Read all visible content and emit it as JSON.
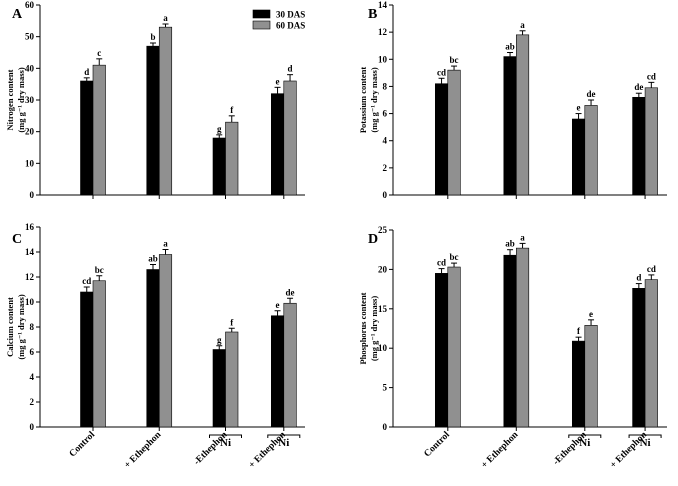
{
  "chart_data": [
    {
      "panel": "A",
      "type": "bar",
      "ylabel": "Nitrogen content",
      "yunit": "(mg g⁻¹ dry mass)",
      "ylim": [
        0,
        60
      ],
      "yticks": [
        0,
        10,
        20,
        30,
        40,
        50,
        60
      ],
      "categories": [
        "Control",
        "+ Ethephon",
        "-Ethephon",
        "+ Ethephon"
      ],
      "series": [
        {
          "name": "30 DAS",
          "color": "#000000",
          "values": [
            36,
            47,
            18,
            32
          ],
          "errors": [
            1,
            1,
            1,
            2
          ],
          "letters": [
            "d",
            "b",
            "g",
            "e"
          ]
        },
        {
          "name": "60 DAS",
          "color": "#909090",
          "values": [
            41,
            53,
            23,
            36
          ],
          "errors": [
            2,
            1,
            2,
            2
          ],
          "letters": [
            "c",
            "a",
            "f",
            "d"
          ]
        }
      ]
    },
    {
      "panel": "B",
      "type": "bar",
      "ylabel": "Potassium content",
      "yunit": "(mg g⁻¹ dry mass)",
      "ylim": [
        0,
        14
      ],
      "yticks": [
        0,
        2,
        4,
        6,
        8,
        10,
        12,
        14
      ],
      "categories": [
        "Control",
        "+ Ethephon",
        "-Ethephon",
        "+ Ethephon"
      ],
      "series": [
        {
          "name": "30 DAS",
          "color": "#000000",
          "values": [
            8.2,
            10.2,
            5.6,
            7.2
          ],
          "errors": [
            0.4,
            0.3,
            0.4,
            0.3
          ],
          "letters": [
            "cd",
            "ab",
            "e",
            "de"
          ]
        },
        {
          "name": "60 DAS",
          "color": "#909090",
          "values": [
            9.2,
            11.8,
            6.6,
            7.9
          ],
          "errors": [
            0.3,
            0.3,
            0.4,
            0.4
          ],
          "letters": [
            "bc",
            "a",
            "de",
            "cd"
          ]
        }
      ]
    },
    {
      "panel": "C",
      "type": "bar",
      "ylabel": "Calcium content",
      "yunit": "(mg g⁻¹ dry mass)",
      "ylim": [
        0,
        16
      ],
      "yticks": [
        0,
        2,
        4,
        6,
        8,
        10,
        12,
        14,
        16
      ],
      "categories": [
        "Control",
        "+ Ethephon",
        "-Ethephon",
        "+ Ethephon"
      ],
      "series": [
        {
          "name": "30 DAS",
          "color": "#000000",
          "values": [
            10.8,
            12.6,
            6.2,
            8.9
          ],
          "errors": [
            0.4,
            0.4,
            0.3,
            0.4
          ],
          "letters": [
            "cd",
            "ab",
            "g",
            "e"
          ]
        },
        {
          "name": "60 DAS",
          "color": "#909090",
          "values": [
            11.7,
            13.8,
            7.6,
            9.9
          ],
          "errors": [
            0.4,
            0.4,
            0.3,
            0.4
          ],
          "letters": [
            "bc",
            "a",
            "f",
            "de"
          ]
        }
      ]
    },
    {
      "panel": "D",
      "type": "bar",
      "ylabel": "Phosphorus content",
      "yunit": "(mg g⁻¹ dry mass)",
      "ylim": [
        0,
        25
      ],
      "yticks": [
        0,
        5,
        10,
        15,
        20,
        25
      ],
      "categories": [
        "Control",
        "+ Ethephon",
        "-Ethephon",
        "+ Ethephon"
      ],
      "series": [
        {
          "name": "30 DAS",
          "color": "#000000",
          "values": [
            19.5,
            21.8,
            10.9,
            17.6
          ],
          "errors": [
            0.6,
            0.7,
            0.5,
            0.6
          ],
          "letters": [
            "cd",
            "ab",
            "f",
            "d"
          ]
        },
        {
          "name": "60 DAS",
          "color": "#909090",
          "values": [
            20.3,
            22.7,
            12.9,
            18.7
          ],
          "errors": [
            0.5,
            0.6,
            0.7,
            0.6
          ],
          "letters": [
            "bc",
            "a",
            "e",
            "cd"
          ]
        }
      ]
    }
  ],
  "legend": {
    "placement": "top-right of panel A",
    "items": [
      "30 DAS",
      "60 DAS"
    ]
  },
  "ni_bracket_label": "Ni"
}
